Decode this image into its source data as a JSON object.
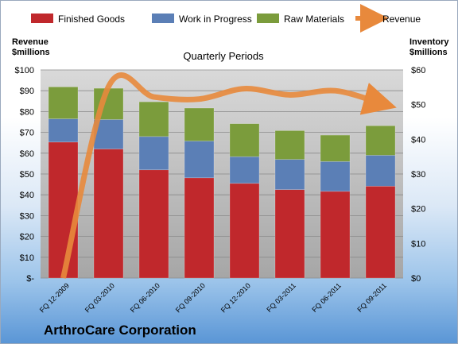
{
  "chart_data": {
    "type": "bar",
    "title": "Quarterly Periods",
    "brand": "ArthroCare Corporation",
    "left_axis_title": [
      "Revenue",
      "$millions"
    ],
    "right_axis_title": [
      "Inventory",
      "$millions"
    ],
    "categories": [
      "FQ 12-2009",
      "FQ 03-2010",
      "FQ 06-2010",
      "FQ 09-2010",
      "FQ 12-2010",
      "FQ 03-2011",
      "FQ 06-2011",
      "FQ 09-2011"
    ],
    "inventory_axis": {
      "ylim": [
        0,
        60
      ],
      "ticks": [
        "$0",
        "$10",
        "$20",
        "$30",
        "$40",
        "$50",
        "$60"
      ]
    },
    "revenue_axis": {
      "ylim": [
        0,
        100
      ],
      "ticks": [
        "$-",
        "$10",
        "$20",
        "$30",
        "$40",
        "$50",
        "$60",
        "$70",
        "$80",
        "$90",
        "$100"
      ]
    },
    "series": [
      {
        "name": "Finished Goods",
        "color": "#c0282c",
        "values": [
          39.2,
          37.2,
          31.2,
          28.9,
          27.3,
          25.5,
          25.0,
          26.5
        ]
      },
      {
        "name": "Work in Progress",
        "color": "#5b7fb6",
        "values": [
          6.7,
          8.5,
          9.6,
          10.6,
          7.7,
          8.7,
          8.6,
          8.9
        ]
      },
      {
        "name": "Raw Materials",
        "color": "#7b9c3c",
        "values": [
          9.2,
          9.0,
          10.0,
          9.5,
          9.5,
          8.3,
          7.6,
          8.5
        ]
      }
    ],
    "line_series": {
      "name": "Revenue",
      "color": "#e8893c",
      "axis": "left",
      "values": [
        0,
        92,
        87,
        86,
        91,
        88,
        90,
        84
      ]
    },
    "legend": "top",
    "grid": true
  }
}
